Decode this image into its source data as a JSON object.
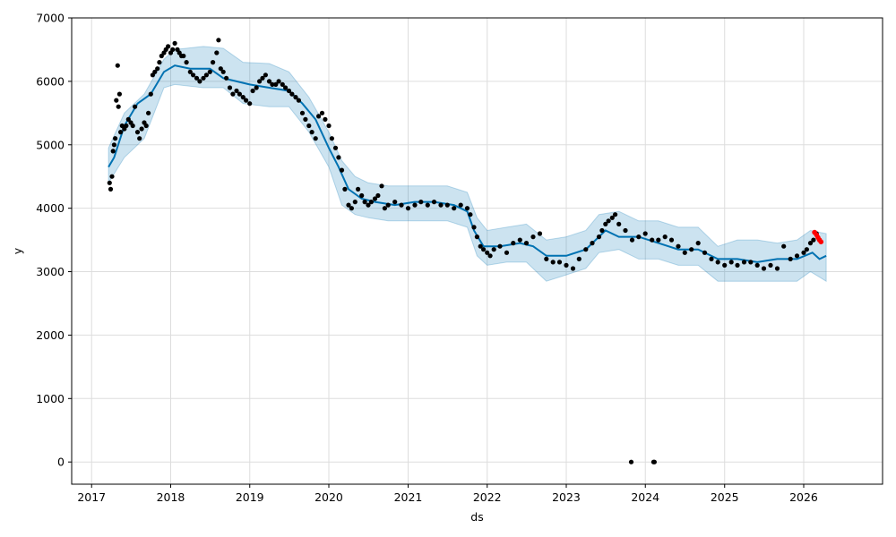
{
  "chart_data": {
    "type": "scatter",
    "title": "",
    "xlabel": "ds",
    "ylabel": "y",
    "x_axis_type": "date",
    "xlim": [
      "2016-10-01",
      "2026-12-31"
    ],
    "ylim": [
      -350,
      7000
    ],
    "x_ticks": [
      "2017",
      "2018",
      "2019",
      "2020",
      "2021",
      "2022",
      "2023",
      "2024",
      "2025",
      "2026"
    ],
    "y_ticks": [
      "0",
      "1000",
      "2000",
      "3000",
      "4000",
      "5000",
      "6000",
      "7000"
    ],
    "grid": true,
    "legend": "none",
    "colors": {
      "observed": "#000000",
      "forecast_line": "#0072B2",
      "uncertainty_band": "#0072B2",
      "recent_observed": "#ff0000",
      "grid": "#dddddd"
    },
    "series": [
      {
        "kind": "band",
        "x": [
          "2017-03-20",
          "2017-06-01",
          "2017-09-01",
          "2017-12-01",
          "2018-01-20",
          "2018-06-01",
          "2018-09-01",
          "2018-12-01",
          "2019-04-01",
          "2019-07-01",
          "2019-10-01",
          "2020-01-01",
          "2020-03-01",
          "2020-05-01",
          "2020-07-01",
          "2020-10-01",
          "2021-01-01",
          "2021-04-01",
          "2021-07-01",
          "2021-10-01",
          "2021-11-15",
          "2022-01-01",
          "2022-04-01",
          "2022-07-01",
          "2022-10-01",
          "2023-01-01",
          "2023-04-01",
          "2023-06-01",
          "2023-09-01",
          "2023-12-01",
          "2024-03-01",
          "2024-06-01",
          "2024-09-01",
          "2024-12-01",
          "2025-03-01",
          "2025-06-01",
          "2025-09-01",
          "2025-12-01",
          "2026-02-01",
          "2026-04-15"
        ],
        "upper": [
          4950,
          5500,
          5800,
          6350,
          6500,
          6550,
          6520,
          6300,
          6280,
          6150,
          5750,
          5200,
          4750,
          4500,
          4400,
          4350,
          4350,
          4350,
          4350,
          4250,
          3850,
          3650,
          3700,
          3750,
          3500,
          3550,
          3650,
          3900,
          3950,
          3800,
          3800,
          3700,
          3700,
          3400,
          3500,
          3500,
          3450,
          3500,
          3650,
          3600
        ],
        "lower": [
          4400,
          4800,
          5100,
          5900,
          5950,
          5900,
          5900,
          5650,
          5600,
          5600,
          5200,
          4650,
          4050,
          3900,
          3850,
          3800,
          3800,
          3800,
          3800,
          3700,
          3250,
          3100,
          3150,
          3150,
          2850,
          2950,
          3050,
          3300,
          3350,
          3200,
          3200,
          3100,
          3100,
          2850,
          2850,
          2850,
          2850,
          2850,
          3000,
          2850
        ]
      },
      {
        "kind": "line",
        "name": "",
        "x": [
          "2017-03-20",
          "2017-04-15",
          "2017-06-01",
          "2017-08-01",
          "2017-10-01",
          "2017-12-01",
          "2018-01-20",
          "2018-04-01",
          "2018-07-01",
          "2018-09-01",
          "2018-11-01",
          "2019-01-01",
          "2019-04-01",
          "2019-07-01",
          "2019-09-01",
          "2019-11-01",
          "2020-01-01",
          "2020-02-15",
          "2020-04-01",
          "2020-06-01",
          "2020-08-01",
          "2020-11-01",
          "2021-02-01",
          "2021-05-01",
          "2021-08-01",
          "2021-10-01",
          "2021-11-01",
          "2021-12-15",
          "2022-03-01",
          "2022-06-01",
          "2022-08-01",
          "2022-10-01",
          "2023-01-01",
          "2023-04-01",
          "2023-07-01",
          "2023-09-01",
          "2023-12-01",
          "2024-03-01",
          "2024-06-01",
          "2024-09-01",
          "2024-12-01",
          "2025-03-01",
          "2025-06-01",
          "2025-09-01",
          "2025-12-01",
          "2026-02-10",
          "2026-03-15",
          "2026-04-15"
        ],
        "values": [
          4650,
          4800,
          5300,
          5650,
          5800,
          6150,
          6250,
          6200,
          6200,
          6050,
          6000,
          5950,
          5900,
          5850,
          5650,
          5400,
          4950,
          4650,
          4300,
          4150,
          4100,
          4050,
          4100,
          4100,
          4050,
          3950,
          3650,
          3400,
          3400,
          3450,
          3400,
          3250,
          3250,
          3350,
          3650,
          3550,
          3550,
          3450,
          3350,
          3350,
          3200,
          3200,
          3150,
          3200,
          3200,
          3300,
          3200,
          3250
        ]
      },
      {
        "kind": "points",
        "name": "",
        "x": [
          "2017-03-25",
          "2017-03-30",
          "2017-04-05",
          "2017-04-10",
          "2017-04-15",
          "2017-04-20",
          "2017-04-25",
          "2017-05-01",
          "2017-05-05",
          "2017-05-10",
          "2017-05-15",
          "2017-05-22",
          "2017-06-01",
          "2017-06-10",
          "2017-06-20",
          "2017-07-01",
          "2017-07-10",
          "2017-07-20",
          "2017-08-01",
          "2017-08-10",
          "2017-08-20",
          "2017-09-01",
          "2017-09-10",
          "2017-09-20",
          "2017-10-01",
          "2017-10-10",
          "2017-10-20",
          "2017-11-01",
          "2017-11-10",
          "2017-11-20",
          "2017-12-01",
          "2017-12-10",
          "2017-12-20",
          "2018-01-01",
          "2018-01-10",
          "2018-01-20",
          "2018-02-01",
          "2018-02-10",
          "2018-02-20",
          "2018-03-01",
          "2018-03-15",
          "2018-04-01",
          "2018-04-15",
          "2018-05-01",
          "2018-05-15",
          "2018-06-01",
          "2018-06-15",
          "2018-07-01",
          "2018-07-15",
          "2018-08-01",
          "2018-08-10",
          "2018-08-20",
          "2018-09-01",
          "2018-09-15",
          "2018-10-01",
          "2018-10-15",
          "2018-11-01",
          "2018-11-15",
          "2018-12-01",
          "2018-12-15",
          "2019-01-01",
          "2019-01-15",
          "2019-02-01",
          "2019-02-15",
          "2019-03-01",
          "2019-03-15",
          "2019-04-01",
          "2019-04-15",
          "2019-05-01",
          "2019-05-15",
          "2019-06-01",
          "2019-06-15",
          "2019-07-01",
          "2019-07-15",
          "2019-08-01",
          "2019-08-15",
          "2019-09-01",
          "2019-09-15",
          "2019-10-01",
          "2019-10-15",
          "2019-11-01",
          "2019-11-15",
          "2019-12-01",
          "2019-12-15",
          "2020-01-01",
          "2020-01-15",
          "2020-02-01",
          "2020-02-15",
          "2020-03-01",
          "2020-03-15",
          "2020-04-01",
          "2020-04-15",
          "2020-05-01",
          "2020-05-15",
          "2020-06-01",
          "2020-06-15",
          "2020-07-01",
          "2020-07-15",
          "2020-08-01",
          "2020-08-15",
          "2020-09-01",
          "2020-09-15",
          "2020-10-01",
          "2020-11-01",
          "2020-12-01",
          "2021-01-01",
          "2021-02-01",
          "2021-03-01",
          "2021-04-01",
          "2021-05-01",
          "2021-06-01",
          "2021-07-01",
          "2021-08-01",
          "2021-09-01",
          "2021-10-01",
          "2021-10-15",
          "2021-11-01",
          "2021-11-15",
          "2021-12-01",
          "2021-12-15",
          "2022-01-01",
          "2022-01-15",
          "2022-02-01",
          "2022-03-01",
          "2022-04-01",
          "2022-05-01",
          "2022-06-01",
          "2022-07-01",
          "2022-08-01",
          "2022-09-01",
          "2022-10-01",
          "2022-11-01",
          "2022-12-01",
          "2023-01-01",
          "2023-02-01",
          "2023-03-01",
          "2023-04-01",
          "2023-05-01",
          "2023-06-01",
          "2023-06-15",
          "2023-07-01",
          "2023-07-15",
          "2023-08-01",
          "2023-08-15",
          "2023-09-01",
          "2023-10-01",
          "2023-10-28",
          "2023-11-01",
          "2023-12-01",
          "2024-01-01",
          "2024-02-01",
          "2024-02-08",
          "2024-02-12",
          "2024-03-01",
          "2024-04-01",
          "2024-05-01",
          "2024-06-01",
          "2024-07-01",
          "2024-08-01",
          "2024-09-01",
          "2024-10-01",
          "2024-11-01",
          "2024-12-01",
          "2025-01-01",
          "2025-02-01",
          "2025-03-01",
          "2025-04-01",
          "2025-05-01",
          "2025-06-01",
          "2025-07-01",
          "2025-08-01",
          "2025-09-01",
          "2025-10-01",
          "2025-11-01",
          "2025-12-01",
          "2026-01-01",
          "2026-01-15",
          "2026-02-01",
          "2026-02-15",
          "2026-03-01"
        ],
        "values": [
          4400,
          4300,
          4500,
          4900,
          5000,
          5100,
          5700,
          6250,
          5600,
          5800,
          5200,
          5300,
          5250,
          5300,
          5400,
          5350,
          5300,
          5600,
          5200,
          5100,
          5250,
          5350,
          5300,
          5500,
          5800,
          6100,
          6150,
          6200,
          6300,
          6400,
          6450,
          6500,
          6550,
          6450,
          6500,
          6600,
          6500,
          6450,
          6400,
          6400,
          6300,
          6150,
          6100,
          6050,
          6000,
          6050,
          6100,
          6150,
          6300,
          6450,
          6650,
          6200,
          6150,
          6050,
          5900,
          5800,
          5850,
          5800,
          5750,
          5700,
          5650,
          5850,
          5900,
          6000,
          6050,
          6100,
          6000,
          5950,
          5950,
          6000,
          5950,
          5900,
          5850,
          5800,
          5750,
          5700,
          5500,
          5400,
          5300,
          5200,
          5100,
          5450,
          5500,
          5400,
          5300,
          5100,
          4950,
          4800,
          4600,
          4300,
          4050,
          4000,
          4100,
          4300,
          4200,
          4100,
          4050,
          4100,
          4150,
          4200,
          4350,
          4000,
          4050,
          4100,
          4050,
          4000,
          4050,
          4100,
          4050,
          4100,
          4050,
          4050,
          4000,
          4050,
          4000,
          3900,
          3700,
          3550,
          3400,
          3350,
          3300,
          3250,
          3350,
          3400,
          3300,
          3450,
          3500,
          3450,
          3550,
          3600,
          3200,
          3150,
          3150,
          3100,
          3050,
          3200,
          3350,
          3450,
          3550,
          3650,
          3750,
          3800,
          3850,
          3900,
          3750,
          3650,
          0,
          3500,
          3550,
          3600,
          3500,
          0,
          0,
          3500,
          3550,
          3500,
          3400,
          3300,
          3350,
          3450,
          3300,
          3200,
          3150,
          3100,
          3150,
          3100,
          3150,
          3150,
          3100,
          3050,
          3100,
          3050,
          3400,
          3200,
          3250,
          3300,
          3350,
          3450,
          3500,
          3600
        ]
      },
      {
        "kind": "points",
        "name": "",
        "x": [
          "2026-02-20",
          "2026-03-01",
          "2026-03-08",
          "2026-03-15",
          "2026-03-22"
        ],
        "values": [
          3620,
          3580,
          3540,
          3500,
          3470
        ]
      }
    ]
  }
}
